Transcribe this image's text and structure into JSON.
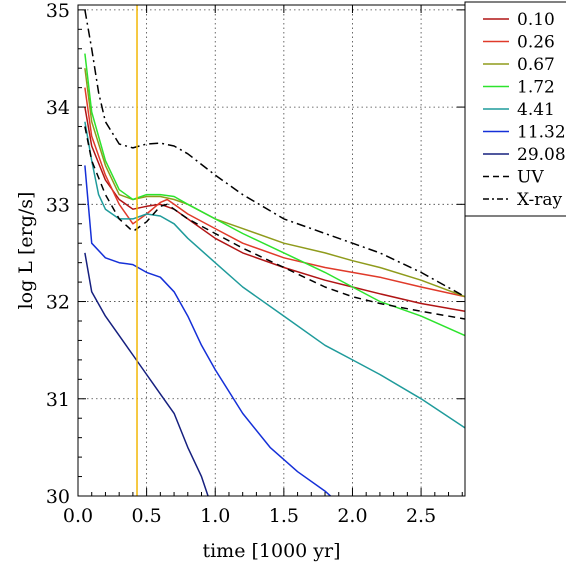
{
  "chart_data": {
    "type": "line",
    "xlabel": "time [1000 yr]",
    "ylabel": "log L [erg/s]",
    "xlim": [
      0.0,
      2.82
    ],
    "ylim": [
      30.0,
      35.05
    ],
    "x_ticks": [
      0.0,
      0.5,
      1.0,
      1.5,
      2.0,
      2.5
    ],
    "x_tick_labels": [
      "0.0",
      "0.5",
      "1.0",
      "1.5",
      "2.0",
      "2.5"
    ],
    "y_ticks": [
      30,
      31,
      32,
      33,
      34,
      35
    ],
    "y_tick_labels": [
      "30",
      "31",
      "32",
      "33",
      "34",
      "35"
    ],
    "grid": true,
    "legend_position": "top-right",
    "vertical_marker": {
      "x": 0.43,
      "color": "#f2b705"
    },
    "series": [
      {
        "name": "0.10",
        "color": "#b01515",
        "dash": "solid",
        "x": [
          0.05,
          0.1,
          0.2,
          0.3,
          0.4,
          0.5,
          0.6,
          0.7,
          0.8,
          1.0,
          1.2,
          1.5,
          1.8,
          2.0,
          2.2,
          2.5,
          2.82
        ],
        "y": [
          34.0,
          33.6,
          33.25,
          33.05,
          32.95,
          32.98,
          33.0,
          32.95,
          32.85,
          32.65,
          32.5,
          32.35,
          32.22,
          32.15,
          32.08,
          31.98,
          31.9
        ]
      },
      {
        "name": "0.26",
        "color": "#e03a2a",
        "dash": "solid",
        "x": [
          0.05,
          0.1,
          0.2,
          0.3,
          0.4,
          0.5,
          0.6,
          0.65,
          0.7,
          0.8,
          1.0,
          1.2,
          1.5,
          1.8,
          2.0,
          2.2,
          2.5,
          2.82
        ],
        "y": [
          34.2,
          33.7,
          33.3,
          33.0,
          32.8,
          32.9,
          33.02,
          33.05,
          33.0,
          32.9,
          32.75,
          32.6,
          32.45,
          32.35,
          32.3,
          32.25,
          32.15,
          32.05
        ]
      },
      {
        "name": "0.67",
        "color": "#8f9b1c",
        "dash": "solid",
        "x": [
          0.05,
          0.1,
          0.2,
          0.3,
          0.4,
          0.5,
          0.6,
          0.7,
          0.8,
          1.0,
          1.2,
          1.5,
          1.8,
          2.0,
          2.2,
          2.5,
          2.82
        ],
        "y": [
          34.4,
          33.85,
          33.4,
          33.1,
          33.05,
          33.08,
          33.08,
          33.05,
          33.0,
          32.85,
          32.75,
          32.6,
          32.5,
          32.42,
          32.35,
          32.22,
          32.05
        ]
      },
      {
        "name": "1.72",
        "color": "#2de32d",
        "dash": "solid",
        "x": [
          0.05,
          0.1,
          0.2,
          0.3,
          0.4,
          0.5,
          0.6,
          0.7,
          0.8,
          1.0,
          1.2,
          1.5,
          1.8,
          2.0,
          2.2,
          2.5,
          2.82
        ],
        "y": [
          34.55,
          33.95,
          33.45,
          33.15,
          33.05,
          33.1,
          33.1,
          33.08,
          33.0,
          32.85,
          32.7,
          32.5,
          32.3,
          32.15,
          32.0,
          31.85,
          31.65
        ]
      },
      {
        "name": "4.41",
        "color": "#1f9b9b",
        "dash": "solid",
        "x": [
          0.05,
          0.1,
          0.15,
          0.2,
          0.3,
          0.4,
          0.5,
          0.6,
          0.7,
          0.8,
          1.0,
          1.2,
          1.5,
          1.8,
          2.0,
          2.2,
          2.5,
          2.82
        ],
        "y": [
          33.85,
          33.45,
          33.1,
          32.95,
          32.85,
          32.85,
          32.9,
          32.88,
          32.8,
          32.65,
          32.4,
          32.15,
          31.85,
          31.55,
          31.4,
          31.25,
          31.0,
          30.7
        ]
      },
      {
        "name": "11.32",
        "color": "#1530d8",
        "dash": "solid",
        "x": [
          0.05,
          0.1,
          0.2,
          0.3,
          0.4,
          0.5,
          0.6,
          0.7,
          0.8,
          0.9,
          1.0,
          1.2,
          1.4,
          1.6,
          1.8,
          1.88
        ],
        "y": [
          33.4,
          32.6,
          32.45,
          32.4,
          32.38,
          32.3,
          32.25,
          32.1,
          31.85,
          31.55,
          31.3,
          30.85,
          30.5,
          30.25,
          30.05,
          29.95
        ]
      },
      {
        "name": "29.08",
        "color": "#16207f",
        "dash": "solid",
        "x": [
          0.05,
          0.1,
          0.2,
          0.3,
          0.4,
          0.5,
          0.6,
          0.7,
          0.8,
          0.9,
          0.96
        ],
        "y": [
          32.5,
          32.1,
          31.85,
          31.65,
          31.45,
          31.25,
          31.05,
          30.85,
          30.5,
          30.2,
          29.95
        ]
      },
      {
        "name": "UV",
        "color": "#000000",
        "dash": "dash",
        "x": [
          0.05,
          0.1,
          0.2,
          0.3,
          0.4,
          0.5,
          0.6,
          0.65,
          0.7,
          0.8,
          1.0,
          1.2,
          1.5,
          1.8,
          2.0,
          2.2,
          2.5,
          2.82
        ],
        "y": [
          33.8,
          33.45,
          33.1,
          32.85,
          32.72,
          32.82,
          32.98,
          33.0,
          32.95,
          32.85,
          32.7,
          32.55,
          32.35,
          32.15,
          32.05,
          31.98,
          31.9,
          31.82
        ]
      },
      {
        "name": "X-ray",
        "color": "#000000",
        "dash": "dashdot",
        "x": [
          0.05,
          0.1,
          0.15,
          0.2,
          0.3,
          0.4,
          0.5,
          0.6,
          0.7,
          0.8,
          1.0,
          1.2,
          1.5,
          1.8,
          2.0,
          2.2,
          2.5,
          2.82
        ],
        "y": [
          35.0,
          34.6,
          34.15,
          33.85,
          33.62,
          33.58,
          33.62,
          33.63,
          33.6,
          33.52,
          33.3,
          33.1,
          32.85,
          32.7,
          32.6,
          32.5,
          32.3,
          32.05
        ]
      }
    ]
  }
}
